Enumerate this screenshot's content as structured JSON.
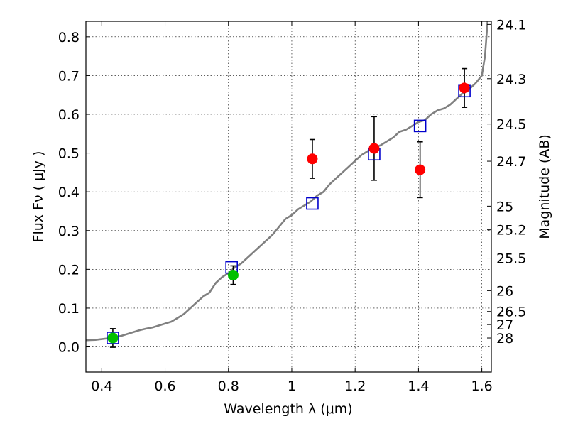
{
  "chart_data": {
    "type": "scatter",
    "title": "",
    "xlabel": "Wavelength  λ (μm)",
    "ylabel": "Flux  Fν  ( μJy )",
    "ylabel_right": "Magnitude (AB)",
    "xlim": [
      0.35,
      1.63
    ],
    "ylim": [
      -0.065,
      0.84
    ],
    "grid": true,
    "grid_style": "dotted",
    "x_ticks": [
      0.4,
      0.6,
      0.8,
      1.0,
      1.2,
      1.4,
      1.6
    ],
    "x_tick_labels": [
      "0.4",
      "0.6",
      "0.8",
      "1",
      "1.2",
      "1.4",
      "1.6"
    ],
    "y_ticks": [
      0.0,
      0.1,
      0.2,
      0.3,
      0.4,
      0.5,
      0.6,
      0.7,
      0.8
    ],
    "y_tick_labels": [
      "0.0",
      "0.1",
      "0.2",
      "0.3",
      "0.4",
      "0.5",
      "0.6",
      "0.7",
      "0.8"
    ],
    "right_ticks": [
      {
        "label": "24.1",
        "flux": 0.832
      },
      {
        "label": "24.3",
        "flux": 0.692
      },
      {
        "label": "24.5",
        "flux": 0.575
      },
      {
        "label": "24.7",
        "flux": 0.479
      },
      {
        "label": "25",
        "flux": 0.363
      },
      {
        "label": "25.2",
        "flux": 0.302
      },
      {
        "label": "25.5",
        "flux": 0.229
      },
      {
        "label": "26",
        "flux": 0.145
      },
      {
        "label": "26.5",
        "flux": 0.0912
      },
      {
        "label": "27",
        "flux": 0.0575
      },
      {
        "label": "28",
        "flux": 0.0229
      }
    ],
    "series": [
      {
        "type": "line",
        "color": "#808080",
        "x": [
          0.35,
          0.38,
          0.4,
          0.42,
          0.44,
          0.46,
          0.48,
          0.5,
          0.52,
          0.54,
          0.56,
          0.58,
          0.6,
          0.62,
          0.64,
          0.66,
          0.68,
          0.7,
          0.72,
          0.74,
          0.76,
          0.78,
          0.8,
          0.82,
          0.84,
          0.86,
          0.88,
          0.9,
          0.92,
          0.94,
          0.96,
          0.98,
          1.0,
          1.02,
          1.04,
          1.06,
          1.08,
          1.1,
          1.12,
          1.14,
          1.16,
          1.18,
          1.2,
          1.22,
          1.24,
          1.26,
          1.28,
          1.3,
          1.32,
          1.34,
          1.36,
          1.38,
          1.4,
          1.42,
          1.44,
          1.46,
          1.48,
          1.5,
          1.52,
          1.54,
          1.56,
          1.58,
          1.6,
          1.61,
          1.62,
          1.63
        ],
        "values": [
          0.017,
          0.018,
          0.02,
          0.022,
          0.025,
          0.028,
          0.033,
          0.038,
          0.043,
          0.047,
          0.05,
          0.055,
          0.06,
          0.065,
          0.075,
          0.085,
          0.1,
          0.115,
          0.13,
          0.14,
          0.165,
          0.18,
          0.19,
          0.205,
          0.215,
          0.23,
          0.245,
          0.26,
          0.275,
          0.29,
          0.31,
          0.33,
          0.34,
          0.355,
          0.365,
          0.375,
          0.39,
          0.4,
          0.42,
          0.435,
          0.45,
          0.465,
          0.48,
          0.495,
          0.505,
          0.515,
          0.52,
          0.53,
          0.54,
          0.555,
          0.56,
          0.57,
          0.58,
          0.585,
          0.6,
          0.61,
          0.615,
          0.625,
          0.64,
          0.655,
          0.665,
          0.68,
          0.7,
          0.75,
          0.86,
          0.86
        ]
      },
      {
        "type": "marker",
        "marker": "open-square",
        "color": "#0000cc",
        "x": [
          0.435,
          0.81,
          1.065,
          1.26,
          1.405,
          1.545
        ],
        "values": [
          0.023,
          0.205,
          0.37,
          0.497,
          0.57,
          0.66
        ]
      },
      {
        "type": "marker",
        "marker": "circle",
        "color": "#ff0000",
        "x": [
          1.065,
          1.26,
          1.405,
          1.545
        ],
        "values": [
          0.485,
          0.512,
          0.457,
          0.668
        ],
        "err": [
          0.05,
          0.082,
          0.072,
          0.05
        ]
      },
      {
        "type": "marker",
        "marker": "circle",
        "color": "#00c000",
        "x": [
          0.435,
          0.815
        ],
        "values": [
          0.023,
          0.185
        ],
        "err": [
          0.024,
          0.024
        ]
      }
    ]
  }
}
